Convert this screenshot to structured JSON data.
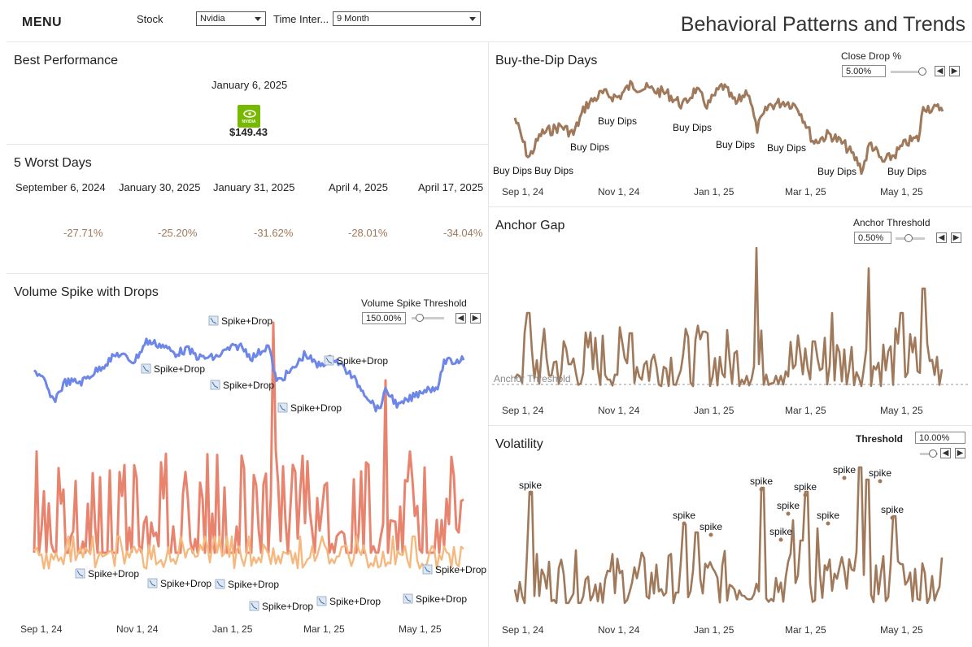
{
  "header": {
    "menu": "MENU",
    "stock_label": "Stock",
    "stock_value": "Nvidia",
    "interval_label": "Time Inter...",
    "interval_value": "9 Month",
    "title": "Behavioral Patterns and Trends"
  },
  "best": {
    "title": "Best Performance",
    "date": "January 6, 2025",
    "price": "$149.43",
    "logo_text": "NVIDIA"
  },
  "worst": {
    "title": "5 Worst Days",
    "days": [
      {
        "date": "September 6, 2024",
        "pct": "-27.71%"
      },
      {
        "date": "January 30, 2025",
        "pct": "-25.20%"
      },
      {
        "date": "January 31, 2025",
        "pct": "-31.62%"
      },
      {
        "date": "April 4, 2025",
        "pct": "-28.01%"
      },
      {
        "date": "April 17, 2025",
        "pct": "-34.04%"
      }
    ]
  },
  "volume": {
    "title": "Volume Spike with Drops",
    "control_label": "Volume Spike Threshold",
    "control_value": "150.00%",
    "annotation": "Spike+Drop"
  },
  "dip": {
    "title": "Buy-the-Dip Days",
    "control_label": "Close Drop %",
    "control_value": "5.00%",
    "annotation": "Buy Dips"
  },
  "anchor": {
    "title": "Anchor Gap",
    "control_label": "Anchor Threshold",
    "control_value": "0.50%",
    "ref_label": "Anchor Threshold"
  },
  "vol": {
    "title": "Volatility",
    "control_label": "Threshold",
    "control_value": "10.00%",
    "annotation": "spike"
  },
  "axis_ticks": [
    "Sep 1, 24",
    "Nov 1, 24",
    "Jan 1, 25",
    "Mar 1, 25",
    "May 1, 25"
  ],
  "colors": {
    "brown": "#a0785a",
    "blue": "#6d86e8",
    "coral": "#e8836e",
    "peach": "#f5b97f",
    "accent": "#76b900"
  },
  "chart_data": [
    {
      "type": "line",
      "title": "Buy-the-Dip Days",
      "x": [
        "Sep 1, 24",
        "Nov 1, 24",
        "Jan 1, 25",
        "Mar 1, 25",
        "May 1, 25"
      ],
      "annotations": [
        "Buy Dips",
        "Buy Dips",
        "Buy Dips",
        "Buy Dips",
        "Buy Dips",
        "Buy Dips",
        "Buy Dips",
        "Buy Dips",
        "Buy Dips"
      ]
    },
    {
      "type": "line",
      "title": "Anchor Gap",
      "x": [
        "Sep 1, 24",
        "Nov 1, 24",
        "Jan 1, 25",
        "Mar 1, 25",
        "May 1, 25"
      ],
      "reference_line": "Anchor Threshold"
    },
    {
      "type": "line",
      "title": "Volatility",
      "x": [
        "Sep 1, 24",
        "Nov 1, 24",
        "Jan 1, 25",
        "Mar 1, 25",
        "May 1, 25"
      ],
      "annotations": [
        "spike",
        "spike",
        "spike",
        "spike",
        "spike",
        "spike",
        "spike",
        "spike",
        "spike",
        "spike",
        "spike",
        "spike"
      ]
    },
    {
      "type": "line",
      "title": "Volume Spike with Drops",
      "x": [
        "Sep 1, 24",
        "Nov 1, 24",
        "Jan 1, 25",
        "Mar 1, 25",
        "May 1, 25"
      ],
      "annotations": [
        "Spike+Drop",
        "Spike+Drop",
        "Spike+Drop",
        "Spike+Drop",
        "Spike+Drop",
        "Spike+Drop",
        "Spike+Drop",
        "Spike+Drop",
        "Spike+Drop",
        "Spike+Drop",
        "Spike+Drop",
        "Spike+Drop",
        "Spike+Drop"
      ]
    }
  ]
}
